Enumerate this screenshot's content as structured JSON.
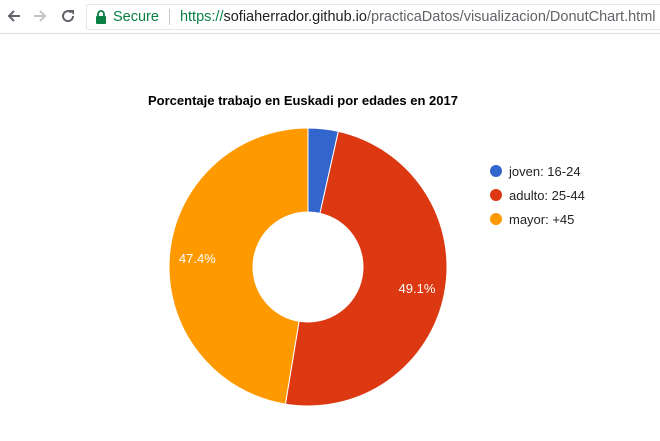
{
  "browser": {
    "back_icon": "arrow-left-icon",
    "forward_icon": "arrow-right-icon",
    "reload_icon": "reload-icon",
    "lock_icon": "lock-icon",
    "secure_label": "Secure",
    "url_scheme": "https://",
    "url_host": "sofiaherrador.github.io",
    "url_path": "/practicaDatos/visualizacion/DonutChart.html"
  },
  "chart_data": {
    "type": "pie",
    "title": "Porcentaje trabajo en Euskadi por edades en 2017",
    "donut": true,
    "legend_position": "right",
    "series": [
      {
        "name": "joven: 16-24",
        "value": 3.5,
        "color": "#3366cc"
      },
      {
        "name": "adulto: 25-44",
        "value": 49.1,
        "color": "#dc3912",
        "label": "49.1%"
      },
      {
        "name": "mayor: +45",
        "value": 47.4,
        "color": "#ff9900",
        "label": "47.4%"
      }
    ]
  }
}
